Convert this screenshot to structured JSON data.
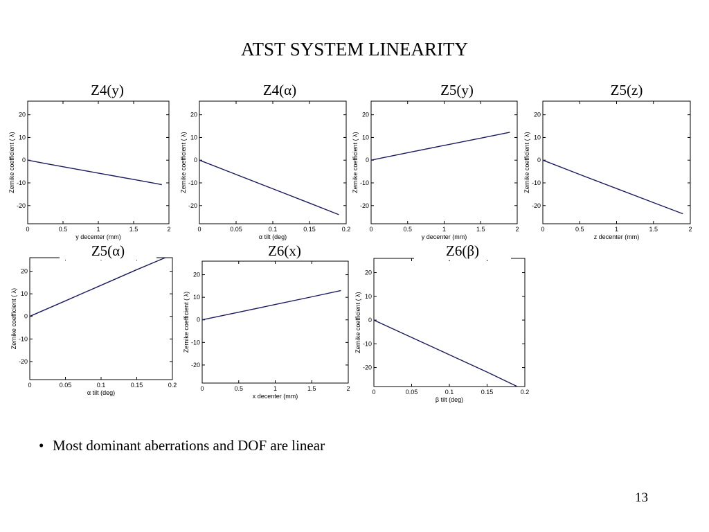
{
  "slide": {
    "title": "ATST SYSTEM LINEARITY",
    "bullet": "Most dominant aberrations and DOF are linear",
    "page_number": "13"
  },
  "colors": {
    "line": "#1a1a5e",
    "axis": "#000000"
  },
  "chart_data": [
    {
      "type": "line",
      "title": "Z4(y)",
      "xlabel": "y decenter (mm)",
      "ylabel": "Zernike coefficient ( λ)",
      "xlim": [
        0,
        2
      ],
      "ylim": [
        -28,
        26
      ],
      "xticks": [
        0,
        0.5,
        1,
        1.5,
        2
      ],
      "xtick_labels": [
        "0",
        "0.5",
        "1",
        "1.5",
        "2"
      ],
      "yticks": [
        20,
        10,
        0,
        -10,
        -20
      ],
      "ytick_labels": [
        "20",
        "10",
        "0",
        "-10",
        "-20"
      ],
      "grid": false,
      "series": [
        {
          "x": [
            0,
            0.25,
            0.5,
            0.75,
            1.0,
            1.25,
            1.5,
            1.75,
            1.9
          ],
          "y": [
            0,
            -1.5,
            -2.9,
            -4.3,
            -5.7,
            -7.1,
            -8.5,
            -9.9,
            -10.8
          ]
        }
      ]
    },
    {
      "type": "line",
      "title": "Z4(α)",
      "xlabel": "α tilt (deg)",
      "ylabel": "Zernike coefficient ( λ)",
      "xlim": [
        0,
        0.2
      ],
      "ylim": [
        -28,
        26
      ],
      "xticks": [
        0,
        0.05,
        0.1,
        0.15,
        0.2
      ],
      "xtick_labels": [
        "0",
        "0.05",
        "0.1",
        "0.15",
        "0.2"
      ],
      "yticks": [
        20,
        10,
        0,
        -10,
        -20
      ],
      "ytick_labels": [
        "20",
        "10",
        "0",
        "-10",
        "-20"
      ],
      "grid": false,
      "series": [
        {
          "x": [
            0,
            0.05,
            0.1,
            0.15,
            0.19
          ],
          "y": [
            0,
            -6.3,
            -12.6,
            -18.9,
            -24
          ]
        }
      ]
    },
    {
      "type": "line",
      "title": "Z5(y)",
      "xlabel": "y decenter (mm)",
      "ylabel": "Zernike coefficient ( λ)",
      "xlim": [
        0,
        2
      ],
      "ylim": [
        -28,
        26
      ],
      "xticks": [
        0,
        0.5,
        1,
        1.5,
        2
      ],
      "xtick_labels": [
        "0",
        "0.5",
        "1",
        "1.5",
        "2"
      ],
      "yticks": [
        20,
        10,
        0,
        -10,
        -20
      ],
      "ytick_labels": [
        "20",
        "10",
        "0",
        "-10",
        "-20"
      ],
      "grid": false,
      "series": [
        {
          "x": [
            0,
            0.5,
            1.0,
            1.5,
            1.9
          ],
          "y": [
            0,
            3.3,
            6.5,
            9.7,
            12.3
          ]
        }
      ]
    },
    {
      "type": "line",
      "title": "Z5(z)",
      "xlabel": "z decenter (mm)",
      "ylabel": "Zernike coefficient ( λ)",
      "xlim": [
        0,
        2
      ],
      "ylim": [
        -28,
        26
      ],
      "xticks": [
        0,
        0.5,
        1,
        1.5,
        2
      ],
      "xtick_labels": [
        "0",
        "0.5",
        "1",
        "1.5",
        "2"
      ],
      "yticks": [
        20,
        10,
        0,
        -10,
        -20
      ],
      "ytick_labels": [
        "20",
        "10",
        "0",
        "-10",
        "-20"
      ],
      "grid": false,
      "series": [
        {
          "x": [
            0,
            0.5,
            1.0,
            1.5,
            1.9
          ],
          "y": [
            0,
            -6.3,
            -12.5,
            -18.7,
            -23.6
          ]
        }
      ]
    },
    {
      "type": "line",
      "title": "Z5(α)",
      "xlabel": "α tilt (deg)",
      "ylabel": "Zernike coefficient ( λ)",
      "xlim": [
        0,
        0.2
      ],
      "ylim": [
        -28,
        26
      ],
      "xticks": [
        0,
        0.05,
        0.1,
        0.15,
        0.2
      ],
      "xtick_labels": [
        "0",
        "0.05",
        "0.1",
        "0.15",
        "0.2"
      ],
      "yticks": [
        20,
        10,
        0,
        -10,
        -20
      ],
      "ytick_labels": [
        "20",
        "10",
        "0",
        "-10",
        "-20"
      ],
      "grid": false,
      "series": [
        {
          "x": [
            0,
            0.05,
            0.1,
            0.15,
            0.19
          ],
          "y": [
            0,
            6.9,
            13.8,
            20.7,
            26
          ]
        }
      ]
    },
    {
      "type": "line",
      "title": "Z6(x)",
      "xlabel": "x decenter (mm)",
      "ylabel": "Zernike coefficient ( λ)",
      "xlim": [
        0,
        2
      ],
      "ylim": [
        -28,
        26
      ],
      "xticks": [
        0,
        0.5,
        1,
        1.5,
        2
      ],
      "xtick_labels": [
        "0",
        "0.5",
        "1",
        "1.5",
        "2"
      ],
      "yticks": [
        20,
        10,
        0,
        -10,
        -20
      ],
      "ytick_labels": [
        "20",
        "10",
        "0",
        "-10",
        "-20"
      ],
      "grid": false,
      "series": [
        {
          "x": [
            0,
            0.5,
            1.0,
            1.5,
            1.9
          ],
          "y": [
            0,
            3.4,
            6.8,
            10.2,
            13
          ]
        }
      ]
    },
    {
      "type": "line",
      "title": "Z6(β)",
      "xlabel": "β tilt (deg)",
      "ylabel": "Zernike coefficient ( λ)",
      "xlim": [
        0,
        0.2
      ],
      "ylim": [
        -28,
        26
      ],
      "xticks": [
        0,
        0.05,
        0.1,
        0.15,
        0.2
      ],
      "xtick_labels": [
        "0",
        "0.05",
        "0.1",
        "0.15",
        "0.2"
      ],
      "yticks": [
        20,
        10,
        0,
        -10,
        -20
      ],
      "ytick_labels": [
        "20",
        "10",
        "0",
        "-10",
        "-20"
      ],
      "grid": false,
      "series": [
        {
          "x": [
            0,
            0.05,
            0.1,
            0.15,
            0.19
          ],
          "y": [
            0,
            -7.3,
            -14.6,
            -21.9,
            -28
          ]
        }
      ]
    }
  ]
}
